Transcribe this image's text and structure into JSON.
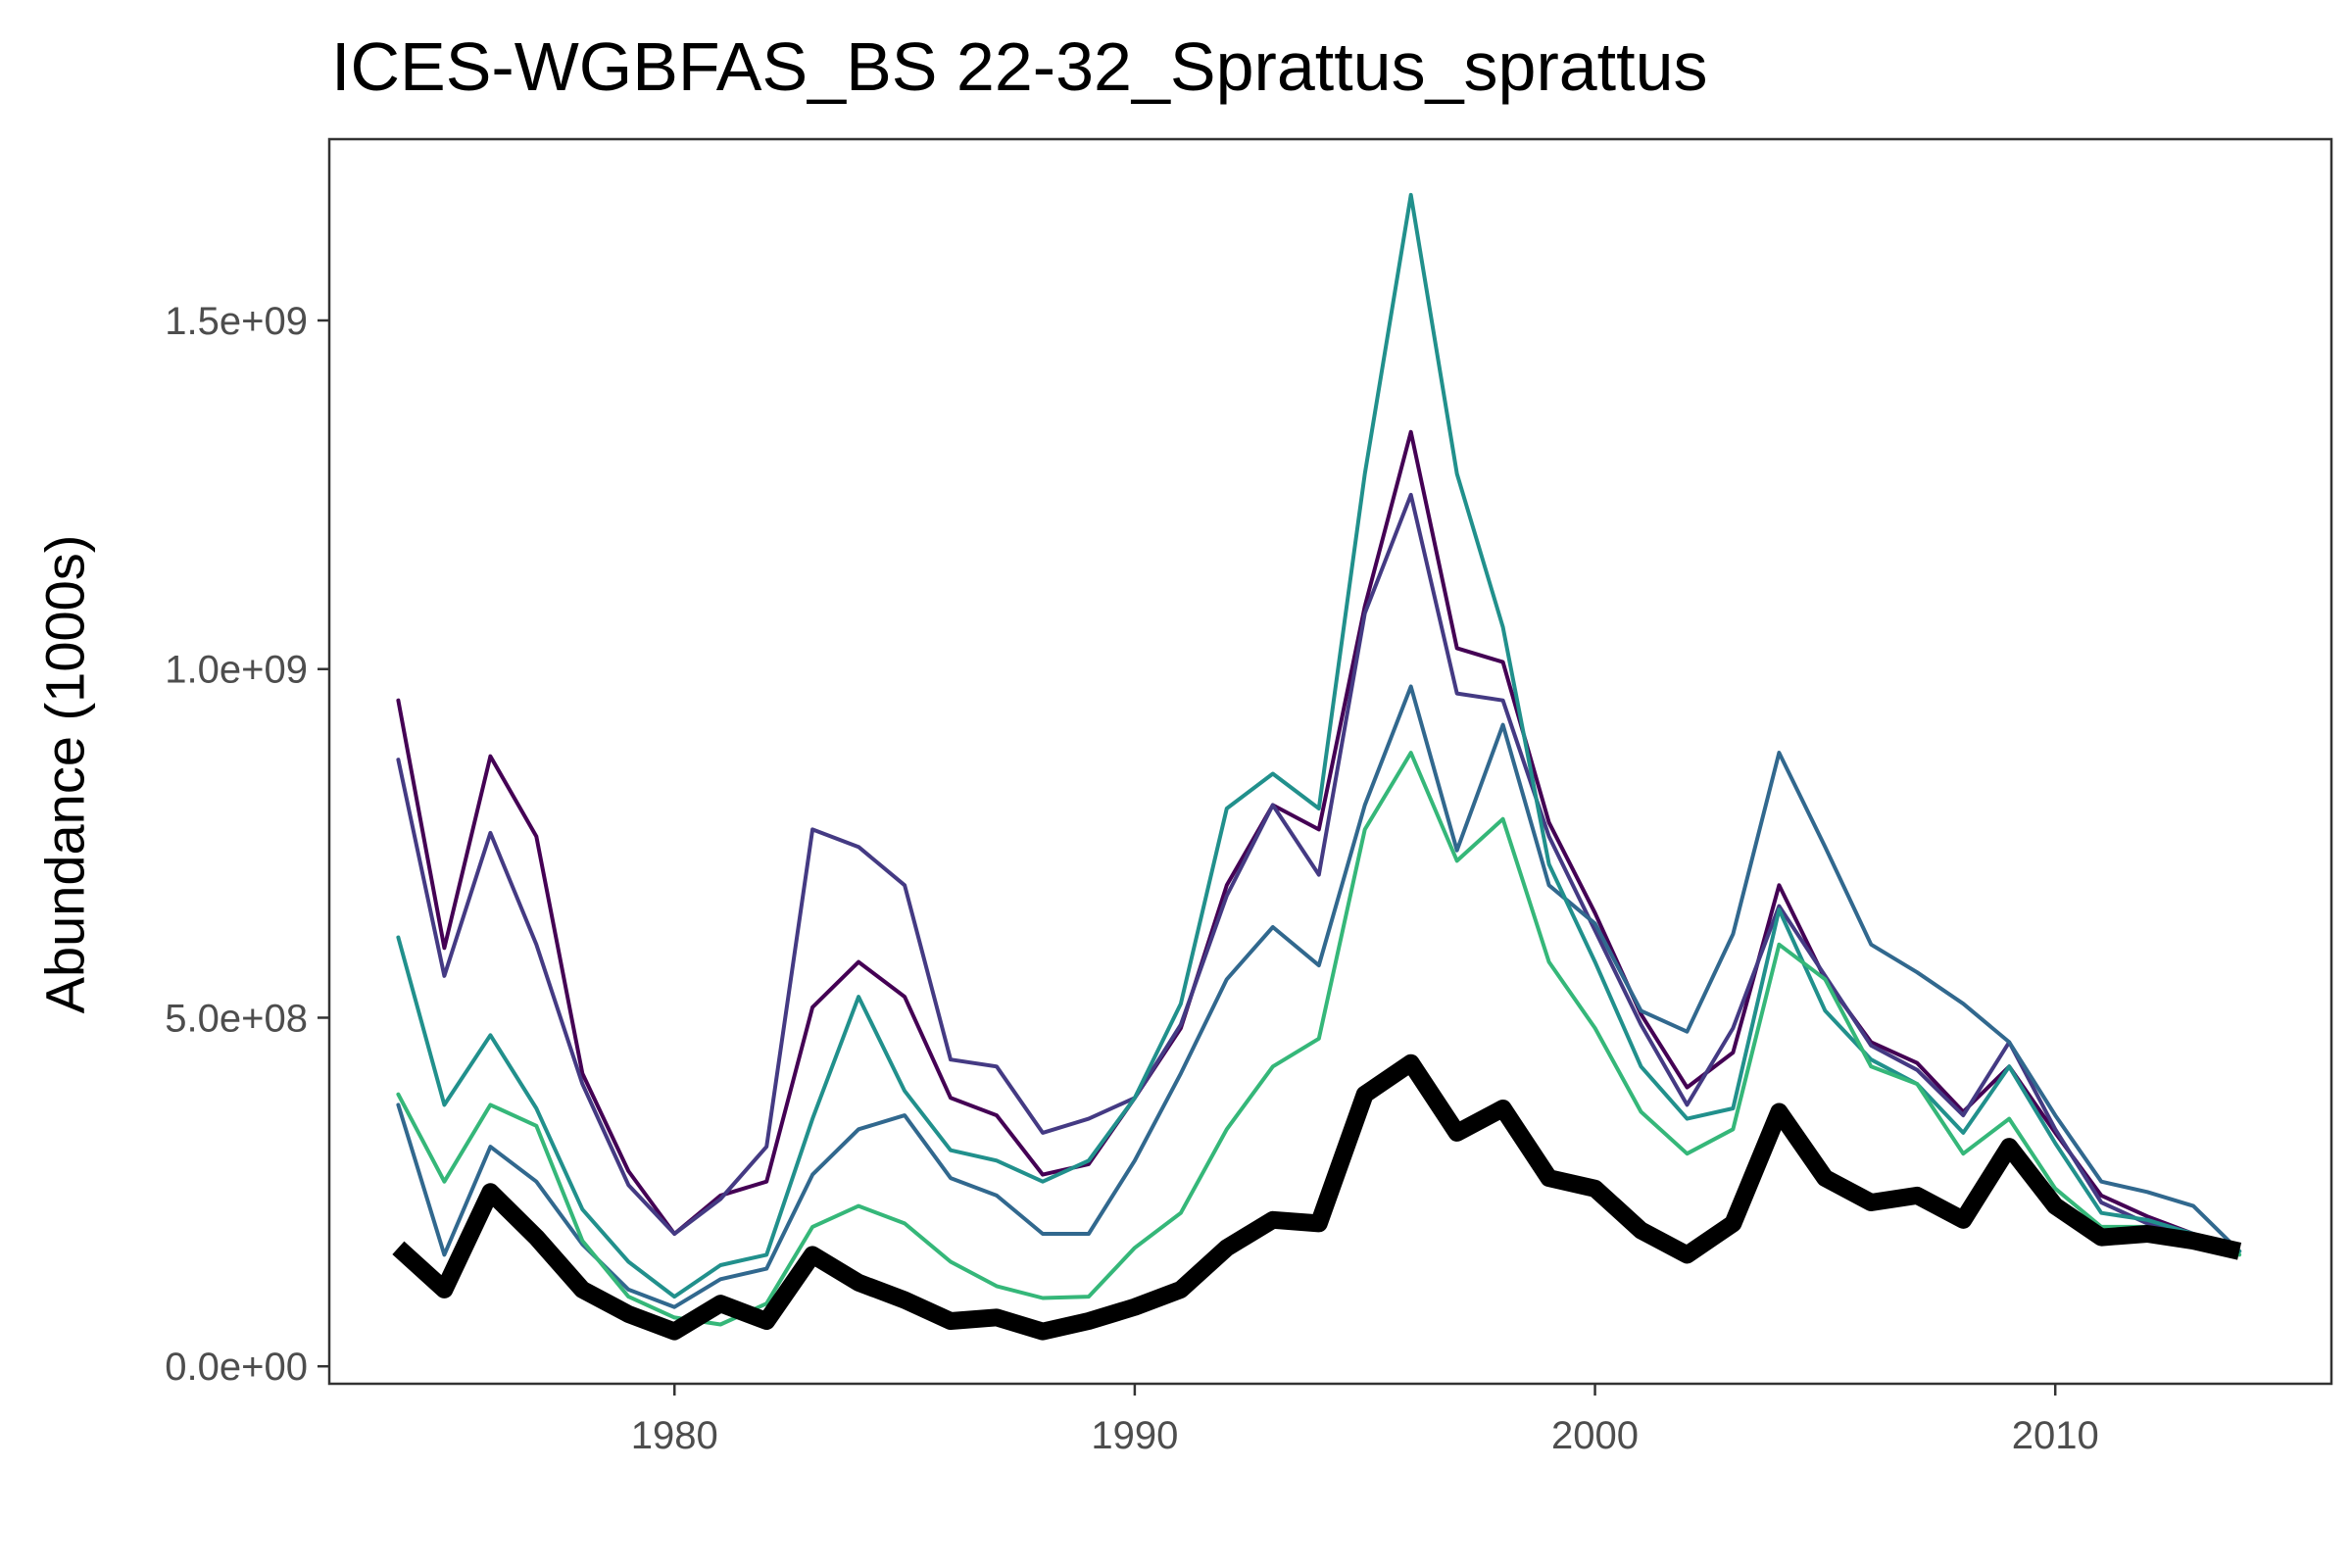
{
  "chart_data": {
    "type": "line",
    "title": "ICES-WGBFAS_BS 22-32_Sprattus_sprattus",
    "xlabel": "",
    "ylabel": "Abundance (1000s)",
    "xlim": [
      1972.5,
      2016
    ],
    "ylim": [
      -25000000,
      1760000000
    ],
    "x_ticks": [
      1980,
      1990,
      2000,
      2010
    ],
    "x_tick_labels": [
      "1980",
      "1990",
      "2000",
      "2010"
    ],
    "y_ticks": [
      0,
      500000000,
      1000000000,
      1500000000
    ],
    "y_tick_labels": [
      "0.0e+00",
      "5.0e+08",
      "1.0e+09",
      "1.5e+09"
    ],
    "grid": false,
    "legend": "none",
    "x": [
      1974,
      1975,
      1976,
      1977,
      1978,
      1979,
      1980,
      1981,
      1982,
      1983,
      1984,
      1985,
      1986,
      1987,
      1988,
      1989,
      1990,
      1991,
      1992,
      1993,
      1994,
      1995,
      1996,
      1997,
      1998,
      1999,
      2000,
      2001,
      2002,
      2003,
      2004,
      2005,
      2006,
      2007,
      2008,
      2009,
      2010,
      2011,
      2012,
      2013,
      2014
    ],
    "series": [
      {
        "color": "#440154",
        "width": 4,
        "values": [
          955000000,
          600000000,
          875000000,
          760000000,
          420000000,
          280000000,
          190000000,
          245000000,
          265000000,
          515000000,
          580000000,
          530000000,
          385000000,
          360000000,
          275000000,
          290000000,
          385000000,
          485000000,
          690000000,
          805000000,
          770000000,
          1090000000,
          1340000000,
          1030000000,
          1010000000,
          780000000,
          650000000,
          505000000,
          400000000,
          450000000,
          690000000,
          555000000,
          465000000,
          435000000,
          365000000,
          430000000,
          335000000,
          245000000,
          215000000,
          190000000,
          165000000
        ]
      },
      {
        "color": "#443A83",
        "width": 4,
        "values": [
          870000000,
          560000000,
          765000000,
          605000000,
          405000000,
          260000000,
          190000000,
          240000000,
          315000000,
          770000000,
          745000000,
          690000000,
          440000000,
          430000000,
          335000000,
          355000000,
          385000000,
          490000000,
          675000000,
          805000000,
          705000000,
          1080000000,
          1250000000,
          965000000,
          955000000,
          760000000,
          625000000,
          490000000,
          375000000,
          485000000,
          660000000,
          560000000,
          460000000,
          425000000,
          360000000,
          465000000,
          340000000,
          235000000,
          205000000,
          190000000,
          165000000
        ]
      },
      {
        "color": "#31688E",
        "width": 4,
        "values": [
          375000000,
          160000000,
          315000000,
          265000000,
          175000000,
          110000000,
          85000000,
          125000000,
          140000000,
          275000000,
          340000000,
          360000000,
          270000000,
          245000000,
          190000000,
          190000000,
          295000000,
          420000000,
          555000000,
          630000000,
          575000000,
          805000000,
          975000000,
          740000000,
          920000000,
          690000000,
          635000000,
          510000000,
          480000000,
          620000000,
          880000000,
          745000000,
          605000000,
          565000000,
          520000000,
          465000000,
          360000000,
          265000000,
          250000000,
          230000000,
          165000000
        ]
      },
      {
        "color": "#21908C",
        "width": 4,
        "values": [
          615000000,
          375000000,
          475000000,
          370000000,
          225000000,
          150000000,
          100000000,
          145000000,
          160000000,
          355000000,
          530000000,
          395000000,
          310000000,
          295000000,
          265000000,
          295000000,
          385000000,
          520000000,
          800000000,
          850000000,
          800000000,
          1280000000,
          1680000000,
          1280000000,
          1060000000,
          720000000,
          580000000,
          430000000,
          355000000,
          370000000,
          655000000,
          510000000,
          440000000,
          405000000,
          335000000,
          430000000,
          320000000,
          220000000,
          210000000,
          190000000,
          165000000
        ]
      },
      {
        "color": "#35B779",
        "width": 4,
        "values": [
          390000000,
          265000000,
          375000000,
          345000000,
          180000000,
          100000000,
          70000000,
          60000000,
          90000000,
          200000000,
          230000000,
          205000000,
          150000000,
          115000000,
          98000000,
          100000000,
          170000000,
          220000000,
          340000000,
          430000000,
          470000000,
          770000000,
          880000000,
          725000000,
          785000000,
          580000000,
          485000000,
          365000000,
          305000000,
          340000000,
          605000000,
          555000000,
          430000000,
          405000000,
          305000000,
          355000000,
          255000000,
          200000000,
          200000000,
          185000000,
          160000000
        ]
      },
      {
        "color": "#000000",
        "width": 18,
        "values": [
          170000000,
          110000000,
          250000000,
          185000000,
          110000000,
          75000000,
          50000000,
          90000000,
          65000000,
          160000000,
          120000000,
          95000000,
          65000000,
          70000000,
          50000000,
          65000000,
          85000000,
          110000000,
          170000000,
          210000000,
          205000000,
          390000000,
          435000000,
          335000000,
          370000000,
          270000000,
          255000000,
          195000000,
          160000000,
          205000000,
          365000000,
          270000000,
          235000000,
          245000000,
          210000000,
          315000000,
          230000000,
          185000000,
          190000000,
          180000000,
          165000000
        ]
      }
    ]
  }
}
